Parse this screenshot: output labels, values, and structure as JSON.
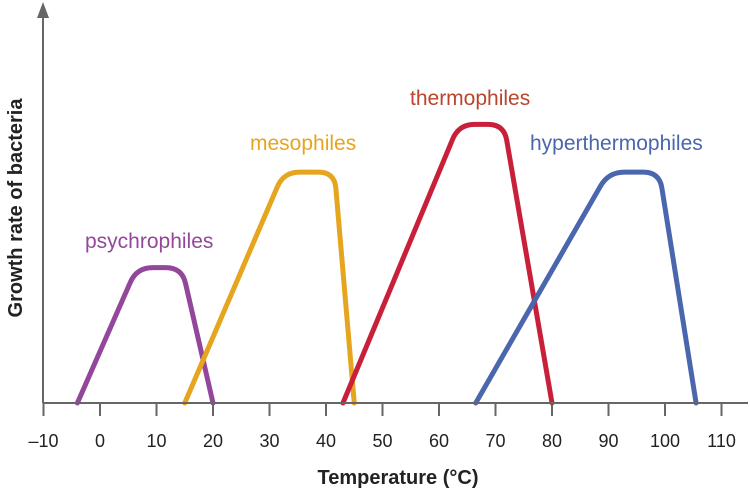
{
  "chart_data": {
    "type": "line",
    "title": "",
    "xlabel": "Temperature (°C)",
    "ylabel": "Growth rate of bacteria",
    "xlim": [
      -10,
      110
    ],
    "ylim": [
      0,
      1
    ],
    "x_ticks": [
      -10,
      0,
      10,
      20,
      30,
      40,
      50,
      60,
      70,
      80,
      90,
      100,
      110
    ],
    "x_tick_labels": [
      "–10",
      "0",
      "10",
      "20",
      "30",
      "40",
      "50",
      "60",
      "70",
      "80",
      "90",
      "100",
      "110"
    ],
    "y_ticks": [],
    "grid": false,
    "legend": "none (series labeled directly above curves)",
    "series": [
      {
        "name": "psychrophiles",
        "color": "#93479a",
        "label_color": "#93479a",
        "start": -4,
        "peak_left": 6.5,
        "peak_right": 14.5,
        "end": 20,
        "peak": 0.34
      },
      {
        "name": "mesophiles",
        "color": "#e6a51e",
        "label_color": "#e6a51e",
        "start": 15,
        "peak_left": 32.5,
        "peak_right": 41.5,
        "end": 45,
        "peak": 0.58
      },
      {
        "name": "thermophiles",
        "color": "#c8203a",
        "label_color": "#b9452c",
        "start": 43,
        "peak_left": 63.5,
        "peak_right": 71.5,
        "end": 80,
        "peak": 0.7
      },
      {
        "name": "hyperthermophiles",
        "color": "#4a66ad",
        "label_color": "#4a66ad",
        "start": 66.5,
        "peak_left": 90,
        "peak_right": 99,
        "end": 105.5,
        "peak": 0.58
      }
    ]
  }
}
